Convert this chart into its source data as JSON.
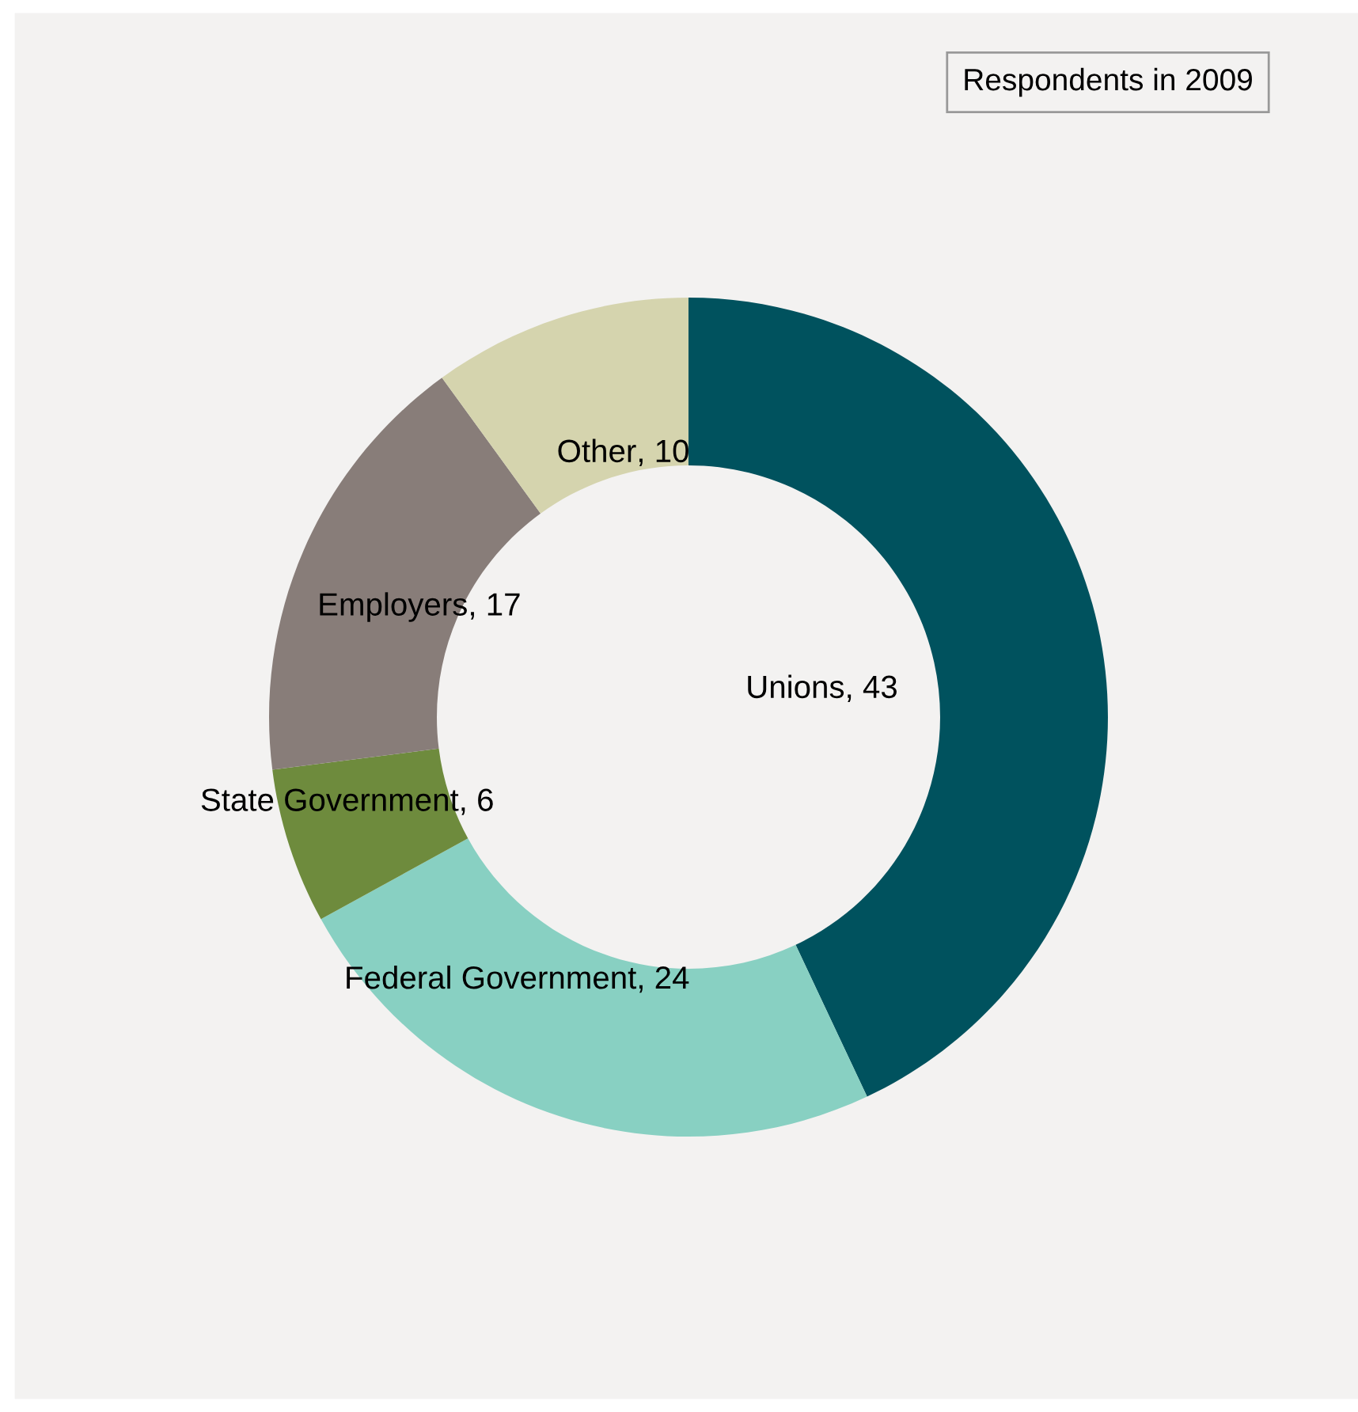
{
  "chart_data": {
    "type": "donut",
    "title": "Respondents in 2009",
    "categories": [
      "Unions",
      "Federal Government",
      "State Government",
      "Employers",
      "Other"
    ],
    "values": [
      43,
      24,
      6,
      17,
      10
    ],
    "colors": [
      "#00525e",
      "#88d0c2",
      "#6e8b3d",
      "#887d79",
      "#d5d4ae"
    ],
    "value_labels": [
      ", 43",
      ", 24",
      ", 6",
      ", 17",
      ", 10"
    ],
    "legend": false
  }
}
